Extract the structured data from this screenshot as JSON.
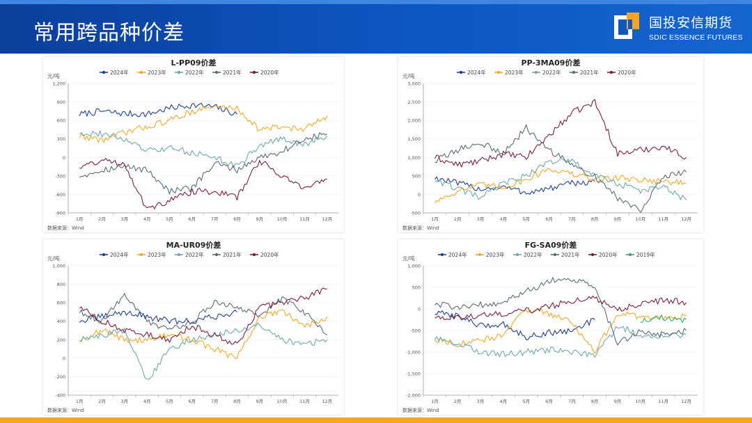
{
  "header": {
    "title": "常用跨品种价差",
    "logo_cn": "国投安信期货",
    "logo_en": "SDIC ESSENCE FUTURES"
  },
  "colors": {
    "header_bg": "#0e56c2",
    "bottom_bar": "#f5a623",
    "s2024": "#1f3f8f",
    "s2023": "#f0a92a",
    "s2022": "#6fa8a8",
    "s2021": "#5a6b73",
    "s2020": "#7a1f3d",
    "s2019": "#3aaa6a"
  },
  "chart_data": [
    {
      "type": "line",
      "title": "L-PP09价差",
      "ylabel": "元/吨",
      "source": "数据来源：Wind",
      "ylim": [
        -900,
        1200
      ],
      "yticks": [
        -900,
        -600,
        -300,
        0,
        300,
        600,
        900,
        1200
      ],
      "ytick_labels": [
        "-900",
        "-600",
        "-300",
        "0",
        "300",
        "600",
        "900",
        "1,200"
      ],
      "x_labels": [
        "1月",
        "2月",
        "3月",
        "4月",
        "5月",
        "6月",
        "7月",
        "8月",
        "9月",
        "10月",
        "11月",
        "12月"
      ],
      "series": [
        {
          "name": "2024年",
          "color": "#1f3f8f",
          "values": [
            700,
            750,
            710,
            700,
            800,
            850,
            820,
            700
          ]
        },
        {
          "name": "2023年",
          "color": "#f0a92a",
          "values": [
            350,
            280,
            400,
            500,
            600,
            750,
            820,
            800,
            450,
            500,
            450,
            680
          ]
        },
        {
          "name": "2022年",
          "color": "#6fa8a8",
          "values": [
            400,
            380,
            300,
            100,
            150,
            80,
            0,
            -150,
            200,
            300,
            200,
            350
          ]
        },
        {
          "name": "2021年",
          "color": "#5a6b73",
          "values": [
            -300,
            -200,
            -150,
            -200,
            -550,
            -500,
            -100,
            -200,
            0,
            100,
            300,
            380
          ]
        },
        {
          "name": "2020年",
          "color": "#7a1f3d",
          "values": [
            -150,
            -50,
            -100,
            -850,
            -700,
            -550,
            -550,
            -650,
            -50,
            -300,
            -500,
            -350
          ]
        }
      ]
    },
    {
      "type": "line",
      "title": "PP-3MA09价差",
      "ylabel": "元/吨",
      "source": "数据来源：Wind",
      "ylim": [
        -500,
        3000
      ],
      "yticks": [
        -500,
        0,
        500,
        1000,
        1500,
        2000,
        2500,
        3000
      ],
      "ytick_labels": [
        "-500",
        "0",
        "500",
        "1,000",
        "1,500",
        "2,000",
        "2,500",
        "3,000"
      ],
      "x_labels": [
        "1月",
        "2月",
        "3月",
        "4月",
        "5月",
        "6月",
        "7月",
        "8月",
        "9月",
        "10月",
        "11月",
        "12月"
      ],
      "series": [
        {
          "name": "2024年",
          "color": "#1f3f8f",
          "values": [
            450,
            300,
            150,
            200,
            50,
            150,
            300,
            350
          ]
        },
        {
          "name": "2023年",
          "color": "#f0a92a",
          "values": [
            -200,
            100,
            250,
            200,
            400,
            700,
            550,
            400,
            450,
            400,
            350,
            300
          ]
        },
        {
          "name": "2022年",
          "color": "#6fa8a8",
          "values": [
            400,
            150,
            -100,
            300,
            500,
            900,
            900,
            500,
            300,
            100,
            200,
            -150
          ]
        },
        {
          "name": "2021年",
          "color": "#5a6b73",
          "values": [
            900,
            1200,
            1400,
            1100,
            1800,
            1200,
            800,
            500,
            -100,
            -400,
            500,
            600
          ]
        },
        {
          "name": "2020年",
          "color": "#7a1f3d",
          "values": [
            1000,
            800,
            900,
            1100,
            1000,
            1600,
            2200,
            2500,
            1100,
            1200,
            1300,
            1000
          ]
        }
      ]
    },
    {
      "type": "line",
      "title": "MA-UR09价差",
      "ylabel": "元/吨",
      "source": "数据来源：Wind",
      "ylim": [
        -400,
        1000
      ],
      "yticks": [
        -400,
        -200,
        0,
        200,
        400,
        600,
        800,
        1000
      ],
      "ytick_labels": [
        "-400",
        "-200",
        "0",
        "200",
        "400",
        "600",
        "800",
        "1,000"
      ],
      "x_labels": [
        "1月",
        "2月",
        "3月",
        "4月",
        "5月",
        "6月",
        "7月",
        "8月",
        "9月",
        "10月",
        "11月",
        "12月"
      ],
      "series": [
        {
          "name": "2024年",
          "color": "#1f3f8f",
          "values": [
            400,
            450,
            500,
            450,
            400,
            400,
            450,
            500
          ]
        },
        {
          "name": "2023年",
          "color": "#f0a92a",
          "values": [
            200,
            300,
            200,
            200,
            250,
            200,
            100,
            0,
            450,
            500,
            350,
            450
          ]
        },
        {
          "name": "2022年",
          "color": "#6fa8a8",
          "values": [
            200,
            250,
            300,
            -250,
            100,
            200,
            250,
            300,
            350,
            200,
            150,
            200
          ]
        },
        {
          "name": "2021年",
          "color": "#5a6b73",
          "values": [
            500,
            400,
            700,
            400,
            300,
            400,
            600,
            550,
            450,
            650,
            500,
            250
          ]
        },
        {
          "name": "2020年",
          "color": "#7a1f3d",
          "values": [
            550,
            400,
            300,
            250,
            200,
            350,
            250,
            150,
            550,
            600,
            650,
            750
          ]
        }
      ]
    },
    {
      "type": "line",
      "title": "FG-SA09价差",
      "ylabel": "元/吨",
      "source": "数据来源：Wind",
      "ylim": [
        -2000,
        1000
      ],
      "yticks": [
        -2000,
        -1500,
        -1000,
        -500,
        0,
        500,
        1000
      ],
      "ytick_labels": [
        "-2,000",
        "-1,500",
        "-1,000",
        "-500",
        "0",
        "500",
        "1,000"
      ],
      "x_labels": [
        "1月",
        "2月",
        "3月",
        "4月",
        "5月",
        "6月",
        "7月",
        "8月",
        "9月",
        "10月",
        "11月",
        "12月"
      ],
      "series": [
        {
          "name": "2024年",
          "color": "#1f3f8f",
          "values": [
            -100,
            -150,
            -400,
            -350,
            -650,
            -550,
            -500,
            -250
          ]
        },
        {
          "name": "2023年",
          "color": "#f0a92a",
          "values": [
            -700,
            -800,
            -750,
            -600,
            0,
            -100,
            -300,
            -1000,
            -100,
            -200,
            -200,
            -150
          ]
        },
        {
          "name": "2022年",
          "color": "#6fa8a8",
          "values": [
            -700,
            -800,
            -1000,
            -1050,
            -1000,
            -950,
            -1000,
            -1100,
            -400,
            -600,
            -650,
            -600
          ]
        },
        {
          "name": "2021年",
          "color": "#5a6b73",
          "values": [
            100,
            50,
            100,
            150,
            400,
            650,
            700,
            500,
            -800,
            -500,
            -600,
            -500
          ]
        },
        {
          "name": "2020年",
          "color": "#7a1f3d",
          "values": [
            -200,
            -200,
            -150,
            -100,
            -50,
            50,
            200,
            250,
            0,
            100,
            200,
            150
          ]
        },
        {
          "name": "2019年",
          "color": "#3aaa6a",
          "values": [
            null,
            null,
            null,
            null,
            null,
            null,
            null,
            null,
            null,
            -300,
            -200,
            -250
          ]
        }
      ]
    }
  ]
}
